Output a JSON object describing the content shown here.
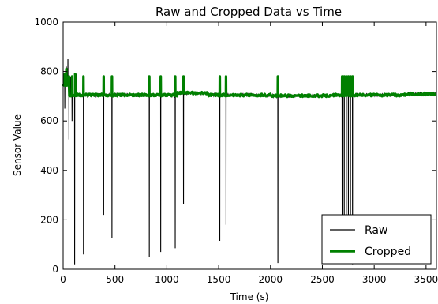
{
  "chart_data": {
    "type": "line",
    "title": "Raw and Cropped Data vs Time",
    "xlabel": "Time (s)",
    "ylabel": "Sensor Value",
    "xlim": [
      0,
      3600
    ],
    "ylim": [
      0,
      1000
    ],
    "xticks": [
      "0",
      "500",
      "1000",
      "1500",
      "2000",
      "2500",
      "3000",
      "3500"
    ],
    "yticks": [
      "0",
      "200",
      "400",
      "600",
      "800",
      "1000"
    ],
    "grid": false,
    "legend": {
      "placement": "lower-right"
    },
    "series": [
      {
        "name": "Raw",
        "color": "#000000",
        "baseline": 705,
        "spikes": [
          {
            "x": 15,
            "y": 650
          },
          {
            "x": 30,
            "y": 820
          },
          {
            "x": 45,
            "y": 850
          },
          {
            "x": 55,
            "y": 525
          },
          {
            "x": 70,
            "y": 780
          },
          {
            "x": 85,
            "y": 600
          },
          {
            "x": 110,
            "y": 20
          },
          {
            "x": 125,
            "y": 790
          },
          {
            "x": 195,
            "y": 60
          },
          {
            "x": 390,
            "y": 220
          },
          {
            "x": 470,
            "y": 125
          },
          {
            "x": 830,
            "y": 50
          },
          {
            "x": 940,
            "y": 70
          },
          {
            "x": 1080,
            "y": 85
          },
          {
            "x": 1160,
            "y": 265
          },
          {
            "x": 1510,
            "y": 115
          },
          {
            "x": 1570,
            "y": 180
          },
          {
            "x": 2070,
            "y": 25
          },
          {
            "x": 2690,
            "y": 55
          },
          {
            "x": 2710,
            "y": 170
          },
          {
            "x": 2730,
            "y": 30
          },
          {
            "x": 2750,
            "y": 130
          },
          {
            "x": 2770,
            "y": 80
          },
          {
            "x": 2790,
            "y": 20
          }
        ]
      },
      {
        "name": "Cropped",
        "color": "#008000",
        "baseline": 705,
        "spikes": [
          {
            "x": 15,
            "y": 790
          },
          {
            "x": 30,
            "y": 810
          },
          {
            "x": 55,
            "y": 780
          },
          {
            "x": 85,
            "y": 780
          },
          {
            "x": 115,
            "y": 790
          },
          {
            "x": 195,
            "y": 780
          },
          {
            "x": 390,
            "y": 780
          },
          {
            "x": 470,
            "y": 780
          },
          {
            "x": 830,
            "y": 780
          },
          {
            "x": 940,
            "y": 780
          },
          {
            "x": 1080,
            "y": 780
          },
          {
            "x": 1160,
            "y": 780
          },
          {
            "x": 1510,
            "y": 780
          },
          {
            "x": 1570,
            "y": 780
          },
          {
            "x": 2070,
            "y": 780
          },
          {
            "x": 2690,
            "y": 780
          },
          {
            "x": 2710,
            "y": 780
          },
          {
            "x": 2730,
            "y": 780
          },
          {
            "x": 2750,
            "y": 780
          },
          {
            "x": 2770,
            "y": 780
          },
          {
            "x": 2790,
            "y": 780
          }
        ]
      }
    ]
  }
}
